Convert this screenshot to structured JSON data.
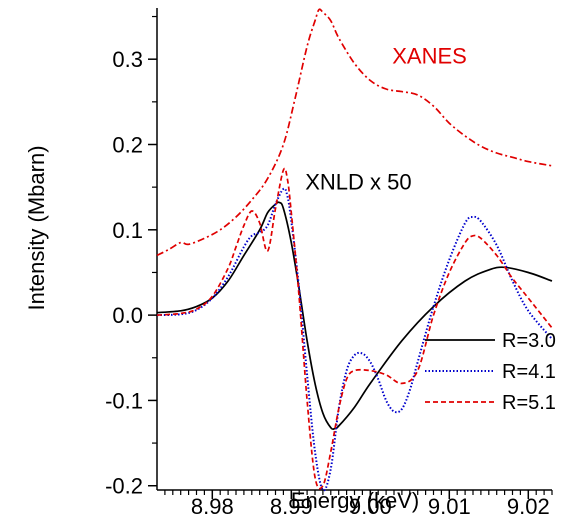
{
  "chart_data": {
    "type": "line",
    "title": "",
    "xlabel": "Energy (keV)",
    "ylabel": "Intensity (Mbarn)",
    "xlim": [
      8.973,
      9.023
    ],
    "ylim": [
      -0.205,
      0.36
    ],
    "x_ticks": [
      8.98,
      8.99,
      9.0,
      9.01,
      9.02
    ],
    "x_tick_labels": [
      "8.98",
      "8.99",
      "9.00",
      "9.01",
      "9.02"
    ],
    "y_ticks": [
      -0.2,
      -0.1,
      0.0,
      0.1,
      0.2,
      0.3
    ],
    "y_tick_labels": [
      "-0.2",
      "-0.1",
      "0.0",
      "0.1",
      "0.2",
      "0.3"
    ],
    "grid": false,
    "legend_position": "bottom-right",
    "annotations": [
      {
        "text": "XANES",
        "x": 9.0075,
        "y": 0.295,
        "color": "#e00000"
      },
      {
        "text": "XNLD x 50",
        "x": 8.9985,
        "y": 0.147,
        "color": "#000000"
      }
    ],
    "series": [
      {
        "name": "XANES",
        "in_legend": false,
        "color": "#e00000",
        "style": "dashdot",
        "x": [
          8.973,
          8.9745,
          8.976,
          8.977,
          8.979,
          8.981,
          8.983,
          8.985,
          8.987,
          8.989,
          8.9905,
          8.992,
          8.993,
          8.9935,
          8.994,
          8.995,
          8.996,
          8.998,
          9.0,
          9.002,
          9.004,
          9.006,
          9.008,
          9.01,
          9.012,
          9.014,
          9.016,
          9.018,
          9.02,
          9.023
        ],
        "y": [
          0.07,
          0.077,
          0.085,
          0.083,
          0.09,
          0.1,
          0.115,
          0.135,
          0.16,
          0.2,
          0.255,
          0.315,
          0.345,
          0.358,
          0.355,
          0.345,
          0.325,
          0.295,
          0.275,
          0.265,
          0.262,
          0.258,
          0.245,
          0.225,
          0.21,
          0.198,
          0.19,
          0.185,
          0.18,
          0.175
        ]
      },
      {
        "name": "R=3.0",
        "color": "#000000",
        "style": "solid",
        "x": [
          8.973,
          8.976,
          8.978,
          8.98,
          8.982,
          8.984,
          8.986,
          8.987,
          8.988,
          8.9885,
          8.989,
          8.99,
          8.991,
          8.992,
          8.993,
          8.994,
          8.995,
          8.9955,
          8.996,
          8.998,
          9.0,
          9.004,
          9.008,
          9.012,
          9.015,
          9.017,
          9.02,
          9.023
        ],
        "y": [
          0.003,
          0.005,
          0.01,
          0.02,
          0.04,
          0.07,
          0.1,
          0.12,
          0.13,
          0.132,
          0.125,
          0.085,
          0.03,
          -0.03,
          -0.08,
          -0.115,
          -0.132,
          -0.133,
          -0.13,
          -0.108,
          -0.08,
          -0.03,
          0.01,
          0.04,
          0.053,
          0.056,
          0.05,
          0.04
        ]
      },
      {
        "name": "R=4.1",
        "color": "#0000cc",
        "style": "dotted",
        "x": [
          8.973,
          8.976,
          8.978,
          8.98,
          8.982,
          8.984,
          8.985,
          8.986,
          8.987,
          8.988,
          8.989,
          8.9895,
          8.99,
          8.991,
          8.992,
          8.993,
          8.994,
          8.995,
          8.996,
          8.997,
          8.998,
          8.999,
          9.0,
          9.001,
          9.002,
          9.003,
          9.004,
          9.005,
          9.006,
          9.008,
          9.01,
          9.012,
          9.013,
          9.014,
          9.016,
          9.018,
          9.02,
          9.023
        ],
        "y": [
          0.0,
          0.001,
          0.006,
          0.02,
          0.045,
          0.08,
          0.093,
          0.097,
          0.105,
          0.13,
          0.148,
          0.14,
          0.11,
          0.03,
          -0.07,
          -0.16,
          -0.205,
          -0.18,
          -0.11,
          -0.065,
          -0.047,
          -0.045,
          -0.055,
          -0.075,
          -0.1,
          -0.113,
          -0.11,
          -0.088,
          -0.055,
          0.01,
          0.065,
          0.108,
          0.115,
          0.11,
          0.082,
          0.04,
          0.005,
          -0.028
        ]
      },
      {
        "name": "R=5.1",
        "color": "#e00000",
        "style": "dashed",
        "x": [
          8.973,
          8.976,
          8.978,
          8.98,
          8.982,
          8.983,
          8.984,
          8.985,
          8.986,
          8.987,
          8.988,
          8.989,
          8.9895,
          8.99,
          8.991,
          8.992,
          8.993,
          8.994,
          8.995,
          8.996,
          8.997,
          8.998,
          9.0,
          9.002,
          9.004,
          9.006,
          9.008,
          9.01,
          9.012,
          9.013,
          9.014,
          9.016,
          9.018,
          9.02,
          9.023
        ],
        "y": [
          0.0,
          0.002,
          0.007,
          0.022,
          0.055,
          0.08,
          0.105,
          0.122,
          0.108,
          0.075,
          0.125,
          0.17,
          0.16,
          0.12,
          0.02,
          -0.1,
          -0.19,
          -0.2,
          -0.16,
          -0.11,
          -0.075,
          -0.065,
          -0.065,
          -0.07,
          -0.08,
          -0.065,
          0.0,
          0.05,
          0.085,
          0.093,
          0.09,
          0.07,
          0.043,
          0.02,
          -0.015
        ]
      }
    ]
  }
}
